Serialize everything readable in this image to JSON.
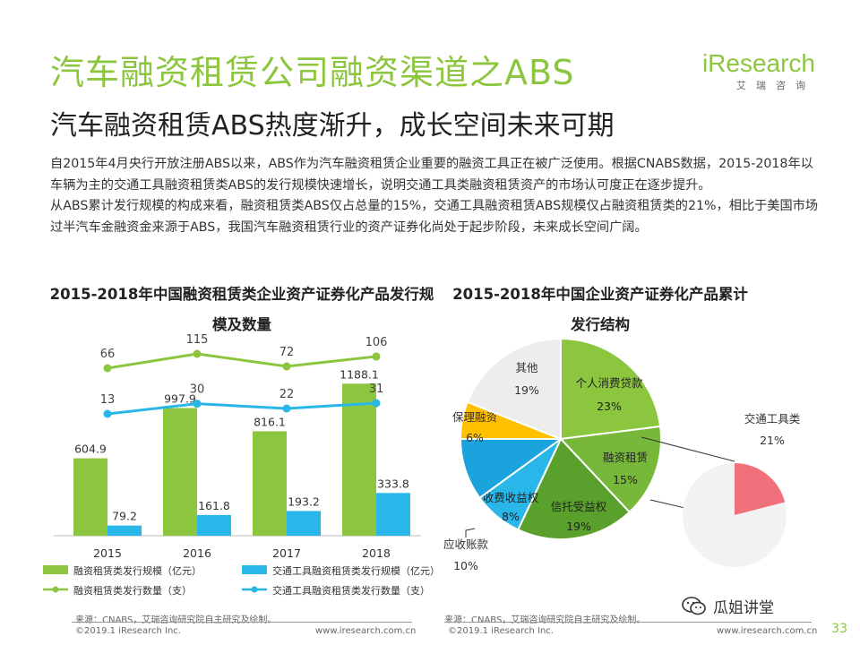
{
  "header": {
    "title": "汽车融资租赁公司融资渠道之ABS",
    "subtitle": "汽车融资租赁ABS热度渐升，成长空间未来可期",
    "brand": "iResearch",
    "brand_cn": "艾瑞咨询"
  },
  "paragraphs": [
    "自2015年4月央行开放注册ABS以来，ABS作为汽车融资租赁企业重要的融资工具正在被广泛使用。根据CNABS数据，2015-2018年以车辆为主的交通工具融资租赁类ABS的发行规模快速增长，说明交通工具类融资租赁资产的市场认可度正在逐步提升。",
    "从ABS累计发行规模的构成来看，融资租赁类ABS仅占总量的15%，交通工具融资租赁ABS规模仅占融资租赁类的21%，相比于美国市场过半汽车金融资金来源于ABS，我国汽车融资租赁行业的资产证券化尚处于起步阶段，未来成长空间广阔。"
  ],
  "chart_data": [
    {
      "type": "bar",
      "title": "2015-2018年中国融资租赁类企业资产证券化产品发行规模及数量",
      "categories": [
        "2015",
        "2016",
        "2017",
        "2018"
      ],
      "series": [
        {
          "name": "融资租赁类发行规模（亿元）",
          "kind": "bar",
          "values": [
            604.9,
            997.9,
            816.1,
            1188.1
          ],
          "labels": [
            "604.9",
            "997.9",
            "816.1",
            "1188.1"
          ],
          "color": "#8cc63f"
        },
        {
          "name": "交通工具融资租赁类发行规模（亿元）",
          "kind": "bar",
          "values": [
            79.2,
            161.8,
            193.2,
            333.8
          ],
          "labels": [
            "79.2",
            "161.8",
            "193.2",
            "333.8"
          ],
          "color": "#29b6e8"
        },
        {
          "name": "融资租赁类发行数量（支）",
          "kind": "line",
          "values": [
            66,
            115,
            72,
            106
          ],
          "labels": [
            "66",
            "115",
            "72",
            "106"
          ],
          "color": "#8cc63f"
        },
        {
          "name": "交通工具融资租赁类发行数量（支）",
          "kind": "line",
          "values": [
            13,
            30,
            22,
            31
          ],
          "labels": [
            "13",
            "30",
            "22",
            "31"
          ],
          "color": "#29b6e8"
        }
      ],
      "source": "来源：CNABS，艾瑞咨询研究院自主研究及绘制。"
    },
    {
      "type": "pie",
      "title": "2015-2018年中国企业资产证券化产品累计发行结构",
      "slices": [
        {
          "label": "个人消费贷款",
          "value": 23,
          "text": "23%",
          "color": "#8cc63f"
        },
        {
          "label": "融资租赁",
          "value": 15,
          "text": "15%",
          "color": "#77b83a"
        },
        {
          "label": "信托受益权",
          "value": 19,
          "text": "19%",
          "color": "#5aa02c"
        },
        {
          "label": "收费收益权",
          "value": 8,
          "text": "8%",
          "color": "#29b6e8"
        },
        {
          "label": "应收账款",
          "value": 10,
          "text": "10%",
          "color": "#1aa3dc"
        },
        {
          "label": "保理融资",
          "value": 6,
          "text": "6%",
          "color": "#ffc000"
        },
        {
          "label": "其他",
          "value": 19,
          "text": "19%",
          "color": "#ededed"
        }
      ],
      "detail": [
        {
          "label": "交通工具类",
          "value": 21,
          "text": "21%",
          "color": "#f0707c"
        },
        {
          "label": "",
          "value": 79,
          "text": "",
          "color": "#f2f2f2"
        }
      ],
      "source": "来源：CNABS，艾瑞咨询研究院自主研究及绘制。"
    }
  ],
  "footer": {
    "copyright_left": "©2019.1 iResearch Inc.",
    "url_left": "www.iresearch.com.cn",
    "copyright_right": "©2019.1 iResearch Inc.",
    "url_right": "www.iresearch.com.cn",
    "page": "33",
    "watermark": "瓜姐讲堂"
  }
}
